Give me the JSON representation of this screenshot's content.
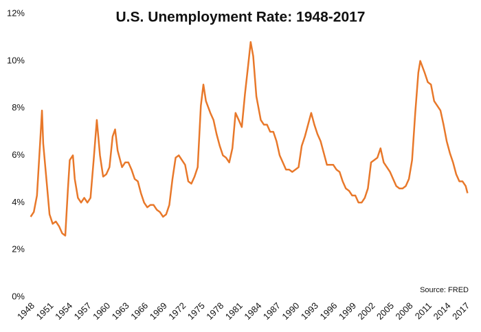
{
  "chart_data": {
    "type": "line",
    "title": "U.S. Unemployment Rate: 1948-2017",
    "annotation": "Source: FRED",
    "x": [
      1948.0,
      1948.5,
      1949.0,
      1949.5,
      1949.8,
      1950.0,
      1950.5,
      1951.0,
      1951.5,
      1952.0,
      1952.5,
      1953.0,
      1953.5,
      1953.9,
      1954.2,
      1954.7,
      1955.0,
      1955.5,
      1956.0,
      1956.5,
      1957.0,
      1957.5,
      1958.0,
      1958.5,
      1959.0,
      1959.5,
      1960.0,
      1960.5,
      1961.0,
      1961.4,
      1961.8,
      1962.5,
      1963.0,
      1963.5,
      1964.0,
      1964.5,
      1965.0,
      1965.5,
      1966.0,
      1966.5,
      1967.0,
      1967.5,
      1968.0,
      1968.5,
      1969.0,
      1969.5,
      1970.0,
      1970.5,
      1971.0,
      1971.5,
      1972.0,
      1972.5,
      1973.0,
      1973.5,
      1974.0,
      1974.5,
      1975.0,
      1975.4,
      1975.8,
      1976.5,
      1977.0,
      1977.5,
      1978.0,
      1978.5,
      1979.0,
      1979.5,
      1980.0,
      1980.5,
      1981.0,
      1981.5,
      1982.0,
      1982.5,
      1982.9,
      1983.3,
      1983.8,
      1984.5,
      1985.0,
      1985.5,
      1986.0,
      1986.5,
      1987.0,
      1987.5,
      1988.0,
      1988.5,
      1989.0,
      1989.5,
      1990.0,
      1990.5,
      1991.0,
      1991.5,
      1992.0,
      1992.5,
      1993.0,
      1993.5,
      1994.0,
      1994.5,
      1995.0,
      1995.5,
      1996.0,
      1996.5,
      1997.0,
      1997.5,
      1998.0,
      1998.5,
      1999.0,
      1999.5,
      2000.0,
      2000.5,
      2001.0,
      2001.5,
      2002.0,
      2002.5,
      2003.0,
      2003.5,
      2004.0,
      2004.5,
      2005.0,
      2005.5,
      2006.0,
      2006.5,
      2007.0,
      2007.5,
      2008.0,
      2008.5,
      2009.0,
      2009.5,
      2009.8,
      2010.5,
      2011.0,
      2011.5,
      2012.0,
      2012.5,
      2013.0,
      2013.5,
      2014.0,
      2014.5,
      2015.0,
      2015.5,
      2016.0,
      2016.5,
      2017.0,
      2017.3
    ],
    "values": [
      3.4,
      3.6,
      4.3,
      6.5,
      7.9,
      6.5,
      5.0,
      3.5,
      3.1,
      3.2,
      3.0,
      2.7,
      2.6,
      4.5,
      5.8,
      6.0,
      5.0,
      4.2,
      4.0,
      4.2,
      4.0,
      4.2,
      5.8,
      7.5,
      6.0,
      5.1,
      5.2,
      5.5,
      6.8,
      7.1,
      6.2,
      5.5,
      5.7,
      5.7,
      5.4,
      5.0,
      4.9,
      4.4,
      4.0,
      3.8,
      3.9,
      3.9,
      3.7,
      3.6,
      3.4,
      3.5,
      3.9,
      5.0,
      5.9,
      6.0,
      5.8,
      5.6,
      4.9,
      4.8,
      5.1,
      5.5,
      8.1,
      9.0,
      8.3,
      7.8,
      7.5,
      6.9,
      6.4,
      6.0,
      5.9,
      5.7,
      6.3,
      7.8,
      7.5,
      7.2,
      8.6,
      9.8,
      10.8,
      10.2,
      8.5,
      7.5,
      7.3,
      7.3,
      7.0,
      7.0,
      6.6,
      6.0,
      5.7,
      5.4,
      5.4,
      5.3,
      5.4,
      5.5,
      6.4,
      6.8,
      7.3,
      7.8,
      7.3,
      6.9,
      6.6,
      6.1,
      5.6,
      5.6,
      5.6,
      5.4,
      5.3,
      4.9,
      4.6,
      4.5,
      4.3,
      4.3,
      4.0,
      4.0,
      4.2,
      4.6,
      5.7,
      5.8,
      5.9,
      6.3,
      5.7,
      5.5,
      5.3,
      5.0,
      4.7,
      4.6,
      4.6,
      4.7,
      5.0,
      5.8,
      7.8,
      9.5,
      10.0,
      9.5,
      9.1,
      9.0,
      8.3,
      8.1,
      7.9,
      7.3,
      6.6,
      6.1,
      5.7,
      5.2,
      4.9,
      4.9,
      4.7,
      4.4
    ],
    "color": "#e8782a",
    "xlim": [
      1947.5,
      2017.8
    ],
    "xticks": [
      1948,
      1951,
      1954,
      1957,
      1960,
      1963,
      1966,
      1969,
      1972,
      1975,
      1978,
      1981,
      1984,
      1987,
      1990,
      1993,
      1996,
      1999,
      2002,
      2005,
      2008,
      2011,
      2014,
      2017
    ],
    "ylim": [
      0,
      12
    ],
    "yticks": [
      {
        "value": 0,
        "label": "0%"
      },
      {
        "value": 2,
        "label": "2%"
      },
      {
        "value": 4,
        "label": "4%"
      },
      {
        "value": 6,
        "label": "6%"
      },
      {
        "value": 8,
        "label": "8%"
      },
      {
        "value": 10,
        "label": "10%"
      },
      {
        "value": 12,
        "label": "12%"
      }
    ]
  }
}
